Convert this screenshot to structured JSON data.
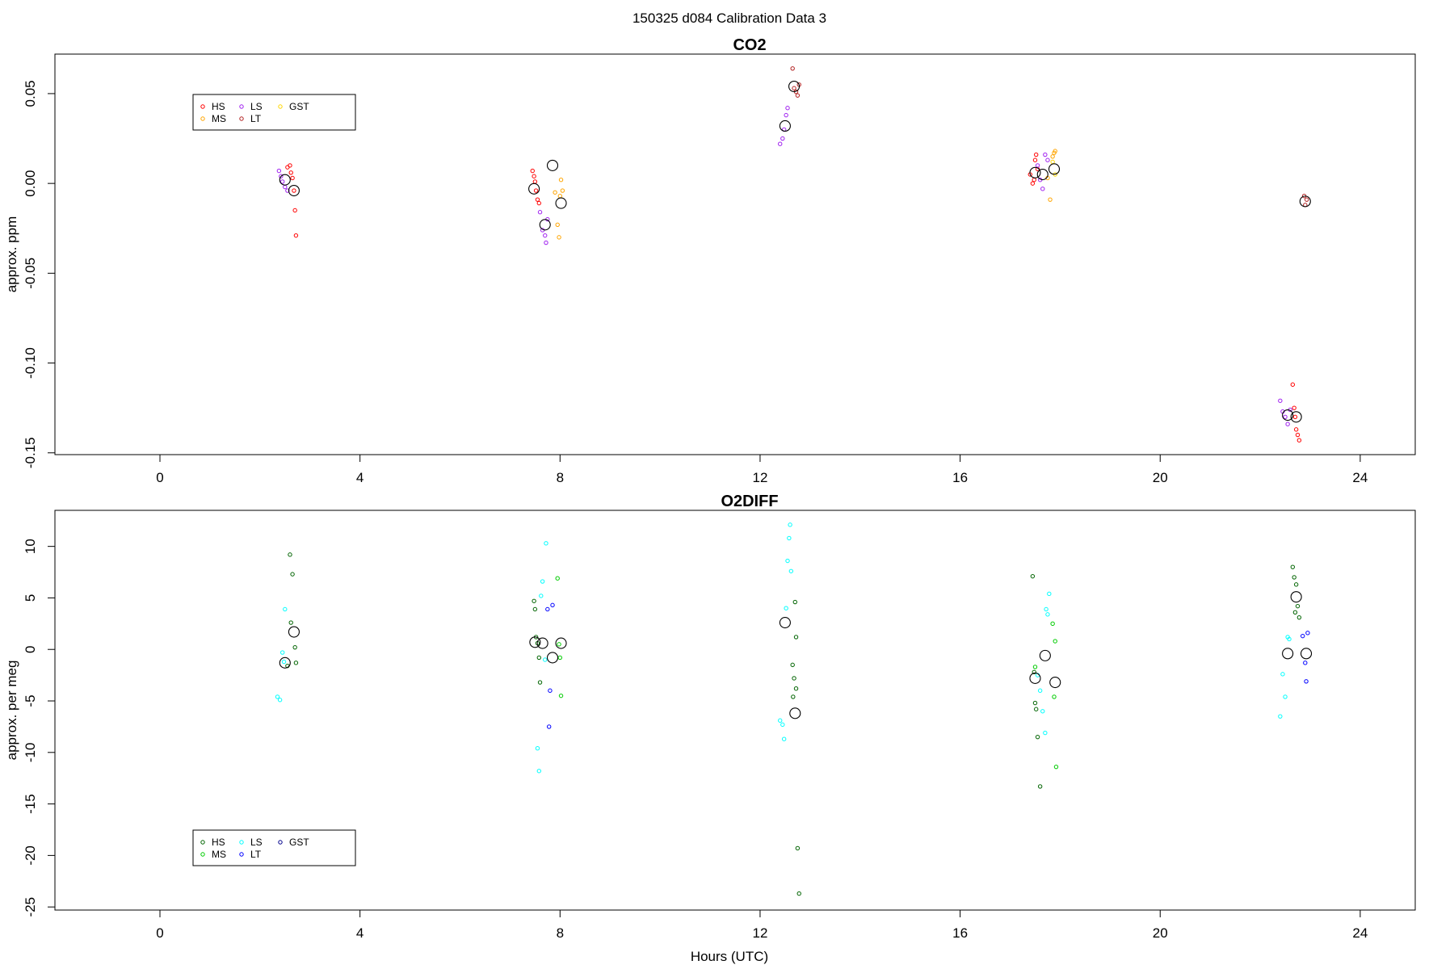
{
  "figure": {
    "suptitle": "150325   d084   Calibration Data 3",
    "xlabel": "Hours (UTC)"
  },
  "chart_data": [
    {
      "type": "scatter",
      "title": "CO2",
      "ylabel": "approx. ppm",
      "xlim": [
        -2.1,
        25.1
      ],
      "ylim": [
        -0.151,
        0.072
      ],
      "xticks": [
        0,
        4,
        8,
        12,
        16,
        20,
        24
      ],
      "xtick_labels": [
        "0",
        "4",
        "8",
        "12",
        "16",
        "20",
        "24"
      ],
      "yticks": [
        0.05,
        0.0,
        -0.05,
        -0.1,
        -0.15
      ],
      "ytick_labels": [
        "0.05",
        "0.00",
        "-0.05",
        "-0.10",
        "-0.15"
      ],
      "legend_position": "top-left",
      "legend_ncol": 3,
      "series": [
        {
          "name": "HS",
          "color": "#ff0000",
          "points": [
            [
              2.55,
              0.009
            ],
            [
              2.6,
              0.01
            ],
            [
              2.62,
              0.006
            ],
            [
              2.65,
              0.003
            ],
            [
              2.68,
              -0.004
            ],
            [
              2.7,
              -0.015
            ],
            [
              2.72,
              -0.029
            ],
            [
              7.45,
              0.007
            ],
            [
              7.48,
              0.004
            ],
            [
              7.5,
              0.001
            ],
            [
              7.52,
              -0.004
            ],
            [
              7.55,
              -0.009
            ],
            [
              7.58,
              -0.011
            ],
            [
              17.4,
              0.005
            ],
            [
              17.45,
              0.0
            ],
            [
              17.48,
              0.002
            ],
            [
              17.5,
              0.013
            ],
            [
              17.52,
              0.016
            ],
            [
              17.55,
              0.008
            ],
            [
              22.65,
              -0.112
            ],
            [
              22.68,
              -0.125
            ],
            [
              22.72,
              -0.137
            ],
            [
              22.75,
              -0.14
            ],
            [
              22.78,
              -0.143
            ],
            [
              22.7,
              -0.13
            ]
          ]
        },
        {
          "name": "MS",
          "color": "#ffa500",
          "points": [
            [
              7.9,
              -0.005
            ],
            [
              7.95,
              -0.023
            ],
            [
              7.98,
              -0.03
            ],
            [
              8.0,
              -0.007
            ],
            [
              8.02,
              0.002
            ],
            [
              8.05,
              -0.004
            ],
            [
              17.8,
              -0.009
            ],
            [
              17.85,
              0.015
            ],
            [
              17.88,
              0.017
            ],
            [
              17.9,
              0.018
            ],
            [
              17.75,
              0.003
            ]
          ]
        },
        {
          "name": "LS",
          "color": "#a020f0",
          "points": [
            [
              2.38,
              0.007
            ],
            [
              2.42,
              0.004
            ],
            [
              2.45,
              0.001
            ],
            [
              2.5,
              -0.002
            ],
            [
              2.55,
              -0.004
            ],
            [
              7.6,
              -0.016
            ],
            [
              7.65,
              -0.026
            ],
            [
              7.7,
              -0.029
            ],
            [
              7.72,
              -0.033
            ],
            [
              7.75,
              -0.02
            ],
            [
              12.4,
              0.022
            ],
            [
              12.45,
              0.025
            ],
            [
              12.48,
              0.03
            ],
            [
              12.52,
              0.038
            ],
            [
              12.55,
              0.042
            ],
            [
              17.55,
              0.01
            ],
            [
              17.6,
              0.002
            ],
            [
              17.65,
              -0.003
            ],
            [
              17.7,
              0.016
            ],
            [
              17.75,
              0.013
            ],
            [
              22.4,
              -0.121
            ],
            [
              22.45,
              -0.127
            ],
            [
              22.5,
              -0.13
            ],
            [
              22.55,
              -0.134
            ],
            [
              22.6,
              -0.126
            ]
          ]
        },
        {
          "name": "LT",
          "color": "#b22222",
          "points": [
            [
              12.65,
              0.064
            ],
            [
              12.68,
              0.053
            ],
            [
              12.72,
              0.051
            ],
            [
              12.75,
              0.049
            ],
            [
              12.78,
              0.055
            ],
            [
              22.88,
              -0.007
            ],
            [
              22.9,
              -0.012
            ],
            [
              22.93,
              -0.009
            ]
          ]
        },
        {
          "name": "GST",
          "color": "#ffd700",
          "points": [
            [
              17.85,
              0.012
            ],
            [
              17.9,
              0.005
            ]
          ]
        }
      ],
      "means": [
        [
          2.5,
          0.002
        ],
        [
          2.68,
          -0.004
        ],
        [
          7.48,
          -0.003
        ],
        [
          7.7,
          -0.023
        ],
        [
          7.85,
          0.01
        ],
        [
          8.02,
          -0.011
        ],
        [
          12.5,
          0.032
        ],
        [
          12.68,
          0.054
        ],
        [
          17.5,
          0.006
        ],
        [
          17.65,
          0.005
        ],
        [
          17.88,
          0.008
        ],
        [
          22.55,
          -0.129
        ],
        [
          22.72,
          -0.13
        ],
        [
          22.9,
          -0.01
        ]
      ]
    },
    {
      "type": "scatter",
      "title": "O2DIFF",
      "ylabel": "approx. per meg",
      "xlim": [
        -2.1,
        25.1
      ],
      "ylim": [
        -25.3,
        13.5
      ],
      "xticks": [
        0,
        4,
        8,
        12,
        16,
        20,
        24
      ],
      "xtick_labels": [
        "0",
        "4",
        "8",
        "12",
        "16",
        "20",
        "24"
      ],
      "yticks": [
        10,
        5,
        0,
        -5,
        -10,
        -15,
        -20,
        -25
      ],
      "ytick_labels": [
        "10",
        "5",
        "0",
        "-5",
        "-10",
        "-15",
        "-20",
        "-25"
      ],
      "legend_position": "bottom-left",
      "legend_ncol": 3,
      "series": [
        {
          "name": "HS",
          "color": "#006400",
          "points": [
            [
              2.6,
              9.2
            ],
            [
              2.65,
              7.3
            ],
            [
              2.62,
              2.6
            ],
            [
              2.7,
              0.2
            ],
            [
              2.72,
              -1.3
            ],
            [
              2.55,
              -1.6
            ],
            [
              7.48,
              4.7
            ],
            [
              7.5,
              3.9
            ],
            [
              7.52,
              1.2
            ],
            [
              7.55,
              0.6
            ],
            [
              7.58,
              -0.8
            ],
            [
              7.6,
              -3.2
            ],
            [
              12.7,
              4.6
            ],
            [
              12.72,
              1.2
            ],
            [
              12.65,
              -1.5
            ],
            [
              12.68,
              -2.8
            ],
            [
              12.72,
              -3.8
            ],
            [
              12.66,
              -4.6
            ],
            [
              12.75,
              -19.3
            ],
            [
              12.78,
              -23.7
            ],
            [
              17.45,
              7.1
            ],
            [
              17.48,
              -2.2
            ],
            [
              17.5,
              -5.2
            ],
            [
              17.52,
              -5.8
            ],
            [
              17.55,
              -8.5
            ],
            [
              17.6,
              -13.3
            ],
            [
              22.65,
              8.0
            ],
            [
              22.68,
              7.0
            ],
            [
              22.72,
              6.3
            ],
            [
              22.75,
              4.2
            ],
            [
              22.7,
              3.6
            ],
            [
              22.78,
              3.1
            ]
          ]
        },
        {
          "name": "MS",
          "color": "#00cc00",
          "points": [
            [
              7.95,
              6.9
            ],
            [
              7.98,
              0.5
            ],
            [
              8.0,
              -0.8
            ],
            [
              8.02,
              -4.5
            ],
            [
              17.5,
              -1.7
            ],
            [
              17.85,
              2.5
            ],
            [
              17.9,
              0.8
            ],
            [
              17.88,
              -4.6
            ],
            [
              17.92,
              -11.4
            ]
          ]
        },
        {
          "name": "LS",
          "color": "#00ffff",
          "points": [
            [
              2.35,
              -4.6
            ],
            [
              2.4,
              -4.9
            ],
            [
              2.45,
              -0.3
            ],
            [
              2.48,
              -1.2
            ],
            [
              2.5,
              3.9
            ],
            [
              7.55,
              -9.6
            ],
            [
              7.58,
              -11.8
            ],
            [
              7.62,
              5.2
            ],
            [
              7.65,
              6.6
            ],
            [
              7.7,
              -1.0
            ],
            [
              7.72,
              10.3
            ],
            [
              12.4,
              -6.9
            ],
            [
              12.45,
              -7.3
            ],
            [
              12.48,
              -8.7
            ],
            [
              12.52,
              4.0
            ],
            [
              12.55,
              8.6
            ],
            [
              12.58,
              10.8
            ],
            [
              12.6,
              12.1
            ],
            [
              12.62,
              7.6
            ],
            [
              17.55,
              -2.5
            ],
            [
              17.6,
              -4.0
            ],
            [
              17.65,
              -6.0
            ],
            [
              17.7,
              -8.1
            ],
            [
              17.72,
              3.9
            ],
            [
              17.75,
              3.4
            ],
            [
              17.78,
              5.4
            ],
            [
              22.4,
              -6.5
            ],
            [
              22.45,
              -2.4
            ],
            [
              22.5,
              -4.6
            ],
            [
              22.55,
              1.2
            ],
            [
              22.58,
              1.0
            ]
          ]
        },
        {
          "name": "LT",
          "color": "#0000ff",
          "points": [
            [
              7.75,
              3.9
            ],
            [
              7.78,
              -7.5
            ],
            [
              7.8,
              -4.0
            ],
            [
              7.85,
              4.3
            ],
            [
              22.85,
              1.3
            ],
            [
              22.9,
              -1.3
            ],
            [
              22.92,
              -3.1
            ],
            [
              22.95,
              1.6
            ]
          ]
        },
        {
          "name": "GST",
          "color": "#00008b",
          "points": []
        }
      ],
      "means": [
        [
          2.5,
          -1.3
        ],
        [
          2.68,
          1.7
        ],
        [
          7.5,
          0.7
        ],
        [
          7.65,
          0.6
        ],
        [
          7.85,
          -0.8
        ],
        [
          8.02,
          0.6
        ],
        [
          12.5,
          2.6
        ],
        [
          12.7,
          -6.2
        ],
        [
          17.5,
          -2.8
        ],
        [
          17.7,
          -0.6
        ],
        [
          17.9,
          -3.2
        ],
        [
          22.55,
          -0.4
        ],
        [
          22.72,
          5.1
        ],
        [
          22.92,
          -0.4
        ]
      ]
    }
  ]
}
